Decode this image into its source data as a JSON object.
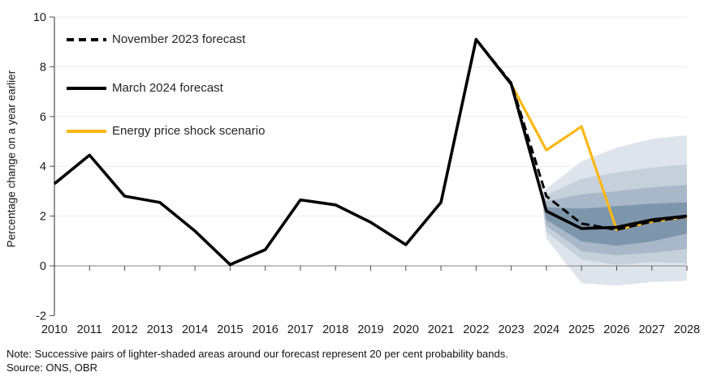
{
  "figure": {
    "y_axis_label": "Percentage change on a year earlier",
    "note": "Note: Successive pairs of lighter-shaded areas around our forecast represent 20 per cent probability bands.",
    "source": "Source: ONS, OBR"
  },
  "legend": [
    {
      "label": "November 2023 forecast",
      "style": "dashed",
      "color": "#000000"
    },
    {
      "label": "March 2024 forecast",
      "style": "solid",
      "color": "#000000"
    },
    {
      "label": "Energy price shock scenario",
      "style": "solid",
      "color": "#fdb714"
    }
  ],
  "chart_data": {
    "type": "line",
    "title": "",
    "xlabel": "",
    "ylabel": "Percentage change on a year earlier",
    "xlim": [
      2010,
      2028
    ],
    "ylim": [
      -2,
      10
    ],
    "x_ticks": [
      2010,
      2011,
      2012,
      2013,
      2014,
      2015,
      2016,
      2017,
      2018,
      2019,
      2020,
      2021,
      2022,
      2023,
      2024,
      2025,
      2026,
      2027,
      2028
    ],
    "y_ticks": [
      -2,
      0,
      2,
      4,
      6,
      8,
      10
    ],
    "grid": "horizontal-light",
    "legend_position": "top-left-inside",
    "colors": {
      "history_and_march_line": "#000000",
      "november_line": "#000000",
      "energy_scenario_line": "#fdb714",
      "gridline": "#ebebeb",
      "zero_line": "#808080",
      "axis": "#4d4d4d",
      "fan_bands_inner_to_outer": [
        "#7e96ac",
        "#a8b8c8",
        "#c6d0db",
        "#dee4eb"
      ]
    },
    "series": [
      {
        "name": "March 2024 forecast",
        "style": "solid",
        "color": "#000000",
        "x": [
          2010,
          2011,
          2012,
          2013,
          2014,
          2015,
          2016,
          2017,
          2018,
          2019,
          2020,
          2021,
          2022,
          2023,
          2024,
          2025,
          2026,
          2027,
          2028
        ],
        "y": [
          3.3,
          4.45,
          2.8,
          2.55,
          1.4,
          0.05,
          0.65,
          2.65,
          2.45,
          1.75,
          0.85,
          2.55,
          9.1,
          7.3,
          2.2,
          1.5,
          1.55,
          1.85,
          2.0
        ]
      },
      {
        "name": "November 2023 forecast",
        "style": "dashed",
        "color": "#000000",
        "x": [
          2022,
          2023,
          2024,
          2025,
          2026,
          2027,
          2028
        ],
        "y": [
          9.1,
          7.35,
          2.8,
          1.7,
          1.45,
          1.78,
          1.97
        ]
      },
      {
        "name": "Energy price shock scenario",
        "style": "solid",
        "color": "#fdb714",
        "x": [
          2023,
          2024,
          2025,
          2026,
          2027,
          2028
        ],
        "y": [
          7.3,
          4.65,
          5.6,
          1.45,
          1.78,
          1.97
        ]
      }
    ],
    "fan_bands": {
      "description": "20 per cent probability bands around the March 2024 forecast",
      "x": [
        2023.85,
        2024,
        2025,
        2026,
        2027,
        2028
      ],
      "pairs_inner_to_outer": [
        {
          "upper": [
            2.9,
            2.35,
            2.3,
            2.4,
            2.5,
            2.55
          ],
          "lower": [
            2.9,
            1.85,
            0.98,
            0.81,
            0.98,
            1.3
          ],
          "color": "#7e96ac"
        },
        {
          "upper": [
            2.9,
            2.6,
            2.87,
            3.0,
            3.15,
            3.26
          ],
          "lower": [
            2.9,
            1.6,
            0.59,
            0.42,
            0.52,
            0.68
          ],
          "color": "#a8b8c8"
        },
        {
          "upper": [
            2.9,
            2.85,
            3.5,
            3.75,
            3.95,
            4.07
          ],
          "lower": [
            2.9,
            1.35,
            0.26,
            0.05,
            0.15,
            0.1
          ],
          "color": "#c6d0db"
        },
        {
          "upper": [
            2.9,
            3.1,
            4.2,
            4.75,
            5.1,
            5.25
          ],
          "lower": [
            2.9,
            1.1,
            -0.7,
            -0.8,
            -0.65,
            -0.6
          ],
          "color": "#dee4eb"
        }
      ]
    }
  },
  "layout_text": {
    "legend_rows_y": [
      50,
      110,
      163
    ]
  }
}
